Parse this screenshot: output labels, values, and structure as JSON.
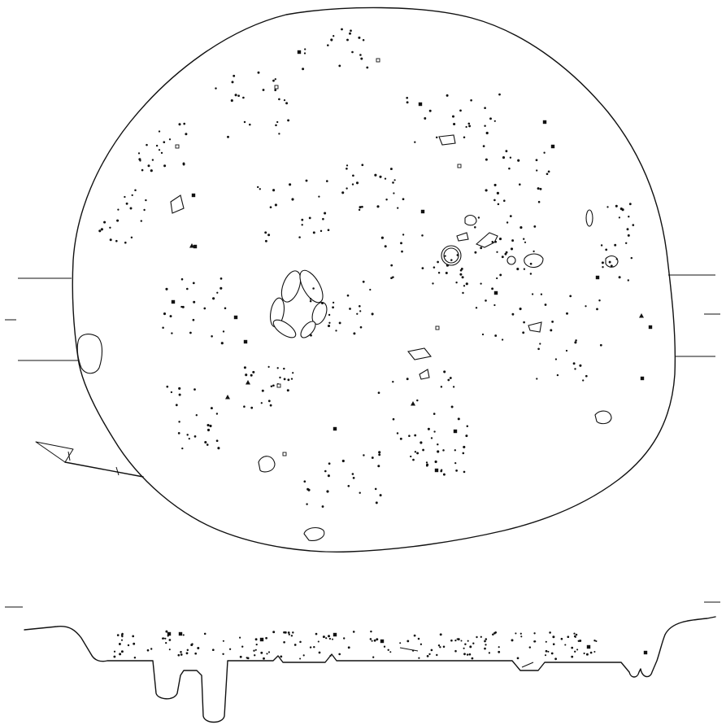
{
  "figure": {
    "kind": "archaeological excavation plan and section",
    "has_text_labels": false,
    "ink_color": "#111111",
    "paper_color": "#ffffff"
  },
  "legend_symbols": [
    "dot",
    "filled-square",
    "open-square",
    "filled-triangle",
    "open-circle"
  ],
  "plan_view": {
    "feature": "pit outline",
    "stones": [
      "stone-cluster-center",
      "stone-east",
      "stone-west",
      "stone-south",
      "stone-southeast"
    ],
    "reference_lines": [
      "left-top",
      "left-mid",
      "left-bottom",
      "right-top",
      "right-mid",
      "right-bottom"
    ]
  },
  "section_view": {
    "feature": "profile",
    "postholes": [
      "posthole-1",
      "posthole-2",
      "posthole-3"
    ]
  },
  "north_arrow": {
    "icon": "north-arrow-icon"
  }
}
